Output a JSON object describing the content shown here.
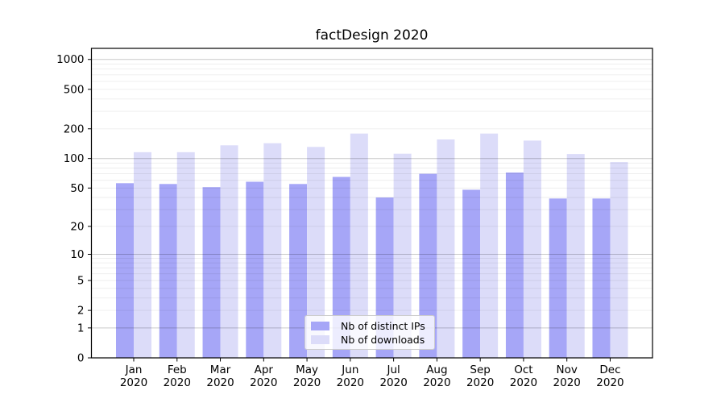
{
  "chart_data": {
    "type": "bar",
    "title": "factDesign 2020",
    "categories": [
      "Jan",
      "Feb",
      "Mar",
      "Apr",
      "May",
      "Jun",
      "Jul",
      "Aug",
      "Sep",
      "Oct",
      "Nov",
      "Dec"
    ],
    "year_label": "2020",
    "series": [
      {
        "name": "Nb of distinct IPs",
        "color": "#a6a6f7",
        "values": [
          56,
          55,
          51,
          58,
          55,
          65,
          40,
          70,
          48,
          72,
          39,
          39
        ]
      },
      {
        "name": "Nb of downloads",
        "color": "#dcdcf9",
        "values": [
          116,
          116,
          136,
          143,
          131,
          179,
          112,
          156,
          179,
          152,
          111,
          92
        ]
      }
    ],
    "xlabel": "",
    "ylabel": "",
    "yscale": "log1p",
    "yticks": [
      0,
      1,
      2,
      5,
      10,
      20,
      50,
      100,
      200,
      500,
      1000
    ],
    "ylim": [
      0,
      1300
    ],
    "grid": true,
    "grid_major_values": [
      1,
      10,
      100,
      1000
    ],
    "grid_major_color": "rgba(0,0,0,0.21)",
    "grid_minor_color": "rgba(0,0,0,0.075)",
    "axis_color": "#000000",
    "legend_position": "lower-center"
  }
}
